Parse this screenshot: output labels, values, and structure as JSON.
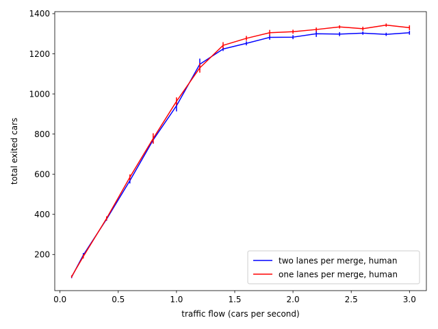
{
  "chart_data": {
    "type": "line",
    "title": "",
    "xlabel": "traffic flow (cars per second)",
    "ylabel": "total exited cars",
    "xlim": [
      -0.045,
      3.145
    ],
    "ylim": [
      20,
      1410
    ],
    "xticks": [
      0.0,
      0.5,
      1.0,
      1.5,
      2.0,
      2.5,
      3.0
    ],
    "xtick_labels": [
      "0.0",
      "0.5",
      "1.0",
      "1.5",
      "2.0",
      "2.5",
      "3.0"
    ],
    "yticks": [
      200,
      400,
      600,
      800,
      1000,
      1200,
      1400
    ],
    "ytick_labels": [
      "200",
      "400",
      "600",
      "800",
      "1000",
      "1200",
      "1400"
    ],
    "grid": false,
    "legend_position": "lower-right",
    "series": [
      {
        "name": "two lanes per merge, human",
        "color": "#0000ff",
        "x": [
          0.1,
          0.2,
          0.4,
          0.6,
          0.8,
          1.0,
          1.2,
          1.4,
          1.6,
          1.8,
          2.0,
          2.2,
          2.4,
          2.6,
          2.8,
          3.0
        ],
        "y": [
          88,
          197,
          376,
          568,
          771,
          941,
          1148,
          1224,
          1252,
          1282,
          1283,
          1300,
          1298,
          1303,
          1297,
          1305
        ],
        "err": [
          6,
          10,
          8,
          14,
          18,
          28,
          28,
          10,
          10,
          12,
          10,
          16,
          10,
          8,
          8,
          10
        ]
      },
      {
        "name": "one lanes per merge, human",
        "color": "#ff0000",
        "x": [
          0.1,
          0.2,
          0.4,
          0.6,
          0.8,
          1.0,
          1.2,
          1.4,
          1.6,
          1.8,
          2.0,
          2.2,
          2.4,
          2.6,
          2.8,
          3.0
        ],
        "y": [
          90,
          190,
          380,
          585,
          778,
          963,
          1130,
          1242,
          1277,
          1305,
          1310,
          1321,
          1334,
          1325,
          1343,
          1330
        ],
        "err": [
          6,
          10,
          10,
          14,
          26,
          20,
          24,
          16,
          12,
          14,
          10,
          10,
          8,
          10,
          8,
          12
        ]
      }
    ]
  }
}
